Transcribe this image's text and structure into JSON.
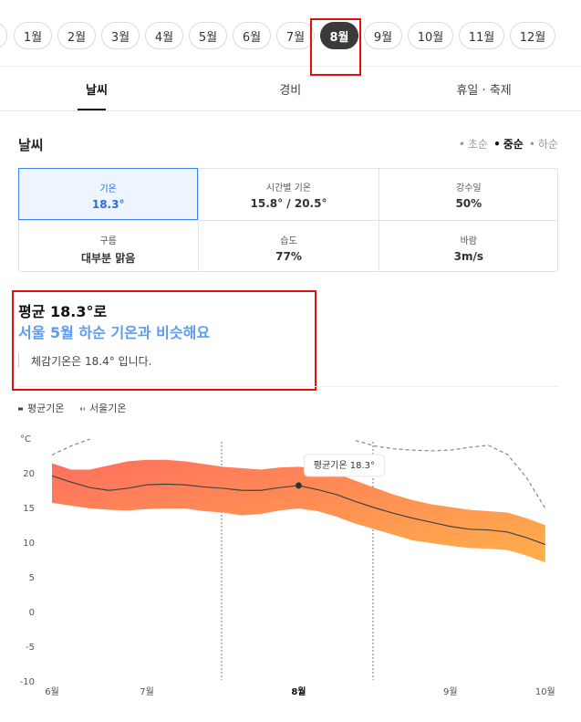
{
  "months": {
    "items": [
      "1월",
      "2월",
      "3월",
      "4월",
      "5월",
      "6월",
      "7월",
      "8월",
      "9월",
      "10월",
      "11월",
      "12월"
    ],
    "selected": 7
  },
  "tabs": {
    "items": [
      "날씨",
      "경비",
      "휴일 · 축제"
    ],
    "selected": 0
  },
  "weather": {
    "title": "날씨",
    "periods": [
      "초순",
      "중순",
      "하순"
    ],
    "selected_period": 1,
    "cells": [
      {
        "label": "기온",
        "value": "18.3°"
      },
      {
        "label": "시간별 기온",
        "value": "15.8° / 20.5°"
      },
      {
        "label": "강수일",
        "value": "50%"
      },
      {
        "label": "구름",
        "value": "대부분 맑음"
      },
      {
        "label": "습도",
        "value": "77%"
      },
      {
        "label": "바람",
        "value": "3m/s"
      }
    ],
    "selected_cell": 0
  },
  "summary": {
    "line1": "평균 18.3°로",
    "line2": "서울 5월 하순 기온과 비슷해요",
    "note": "체감기온은 18.4° 입니다."
  },
  "chart_data": {
    "type": "line",
    "y_label": "°C",
    "categories": [
      "6월",
      null,
      null,
      null,
      null,
      "7월",
      null,
      null,
      null,
      null,
      null,
      null,
      null,
      "8월",
      null,
      null,
      null,
      null,
      null,
      null,
      null,
      "9월",
      null,
      null,
      null,
      null,
      "10월"
    ],
    "highlight": "8월",
    "tooltip": "평균기온 18.3°",
    "series": [
      {
        "name": "평균기온",
        "color": "#444444",
        "values": [
          19.7,
          18.8,
          18.0,
          17.6,
          17.9,
          18.4,
          18.5,
          18.4,
          18.1,
          17.9,
          17.6,
          17.6,
          18.0,
          18.3,
          17.7,
          17.0,
          16.0,
          15.1,
          14.3,
          13.6,
          13.0,
          12.4,
          12.0,
          11.9,
          11.6,
          10.8,
          9.8
        ]
      },
      {
        "name": "서울기온",
        "color": "#888888",
        "dashed": true,
        "values": [
          22.7,
          24.0,
          25.0,
          null,
          null,
          null,
          null,
          null,
          null,
          null,
          null,
          null,
          null,
          null,
          null,
          null,
          24.8,
          24.0,
          23.6,
          23.4,
          23.3,
          23.4,
          23.8,
          24.1,
          22.8,
          19.5,
          15.0
        ]
      }
    ],
    "band": {
      "colors": [
        "#ff6f5e",
        "#ffb04a"
      ],
      "high": [
        21.5,
        20.6,
        20.6,
        21.2,
        21.8,
        22.0,
        22.0,
        21.8,
        21.4,
        21.0,
        20.8,
        20.6,
        20.9,
        21.0,
        20.8,
        20.0,
        19.0,
        18.0,
        17.0,
        16.2,
        15.6,
        15.2,
        14.8,
        14.6,
        14.4,
        13.6,
        12.6
      ],
      "low": [
        15.8,
        15.4,
        15.0,
        14.8,
        14.7,
        14.9,
        15.0,
        15.0,
        14.6,
        14.4,
        14.0,
        14.2,
        14.7,
        15.0,
        14.6,
        13.8,
        12.8,
        12.0,
        11.2,
        10.4,
        10.0,
        9.6,
        9.3,
        9.2,
        9.0,
        8.2,
        7.2
      ]
    },
    "ylim": [
      -10,
      25
    ],
    "yticks": [
      -10,
      -5,
      0,
      5,
      10,
      15,
      20
    ]
  }
}
